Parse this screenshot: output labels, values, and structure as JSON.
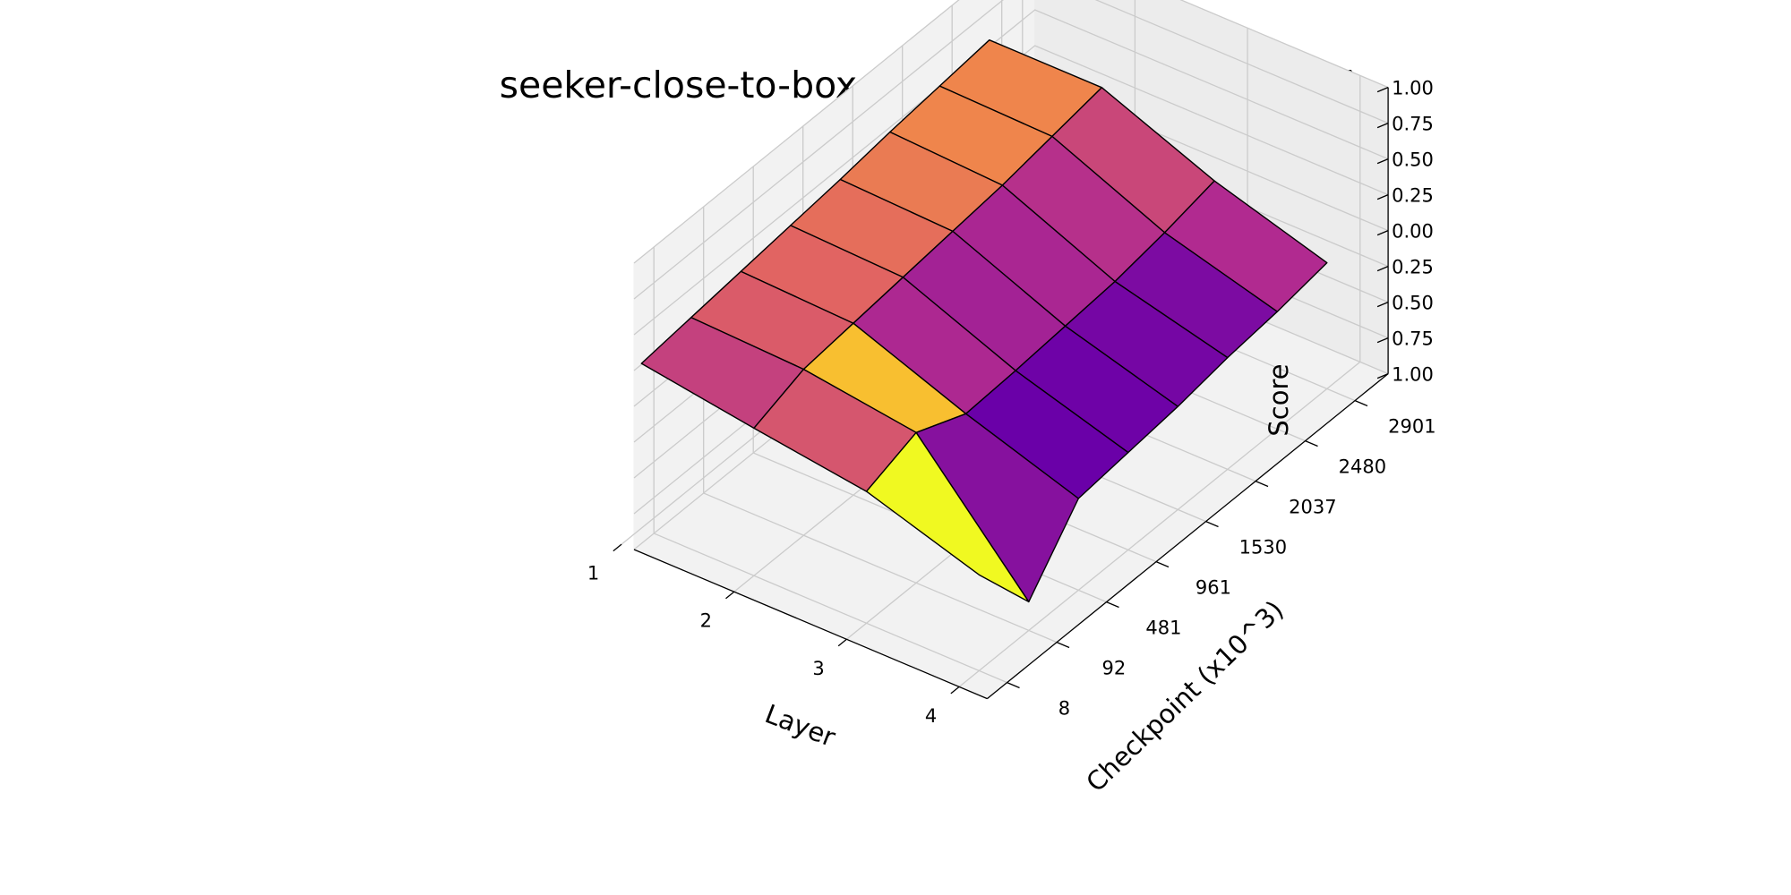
{
  "chart_data": {
    "type": "surface3d",
    "title": "seeker-close-to-box - difference(seeker - hider)",
    "xlabel": "Layer",
    "ylabel": "Checkpoint (x10^3)",
    "zlabel": "Score",
    "x_ticks": [
      "1",
      "2",
      "3",
      "4"
    ],
    "x_values": [
      1,
      2,
      3,
      4
    ],
    "y_ticks": [
      "8",
      "92",
      "481",
      "961",
      "1530",
      "2037",
      "2480",
      "2901"
    ],
    "z_ticks": [
      "1.00",
      "0.75",
      "0.50",
      "0.25",
      "0.00",
      "0.25",
      "0.50",
      "0.75",
      "1.00"
    ],
    "zlim": [
      -1.0,
      1.0
    ],
    "grid": true,
    "colormap": "plasma",
    "colormap_stops": [
      "#0d0887",
      "#6a00a8",
      "#b12a90",
      "#e16462",
      "#fca636",
      "#f0f921"
    ],
    "surface_z": [
      [
        0.15,
        0.19,
        0.23,
        0.27,
        0.31,
        0.36,
        0.4,
        0.44
      ],
      [
        0.03,
        0.16,
        0.2,
        0.24,
        0.28,
        0.32,
        0.38,
        0.44
      ],
      [
        -0.08,
        0.05,
        -0.1,
        -0.08,
        -0.05,
        -0.02,
        0.04,
        0.12
      ],
      [
        -0.33,
        -0.8,
        -0.36,
        -0.32,
        -0.28,
        -0.22,
        -0.18,
        -0.12
      ]
    ],
    "face_values": [
      [
        0.48,
        0.57,
        0.6,
        0.63,
        0.67,
        0.7,
        0.7
      ],
      [
        0.55,
        0.86,
        0.39,
        0.36,
        0.38,
        0.42,
        0.5
      ],
      [
        1.0,
        0.28,
        0.2,
        0.21,
        0.23,
        0.25,
        0.4
      ]
    ]
  }
}
